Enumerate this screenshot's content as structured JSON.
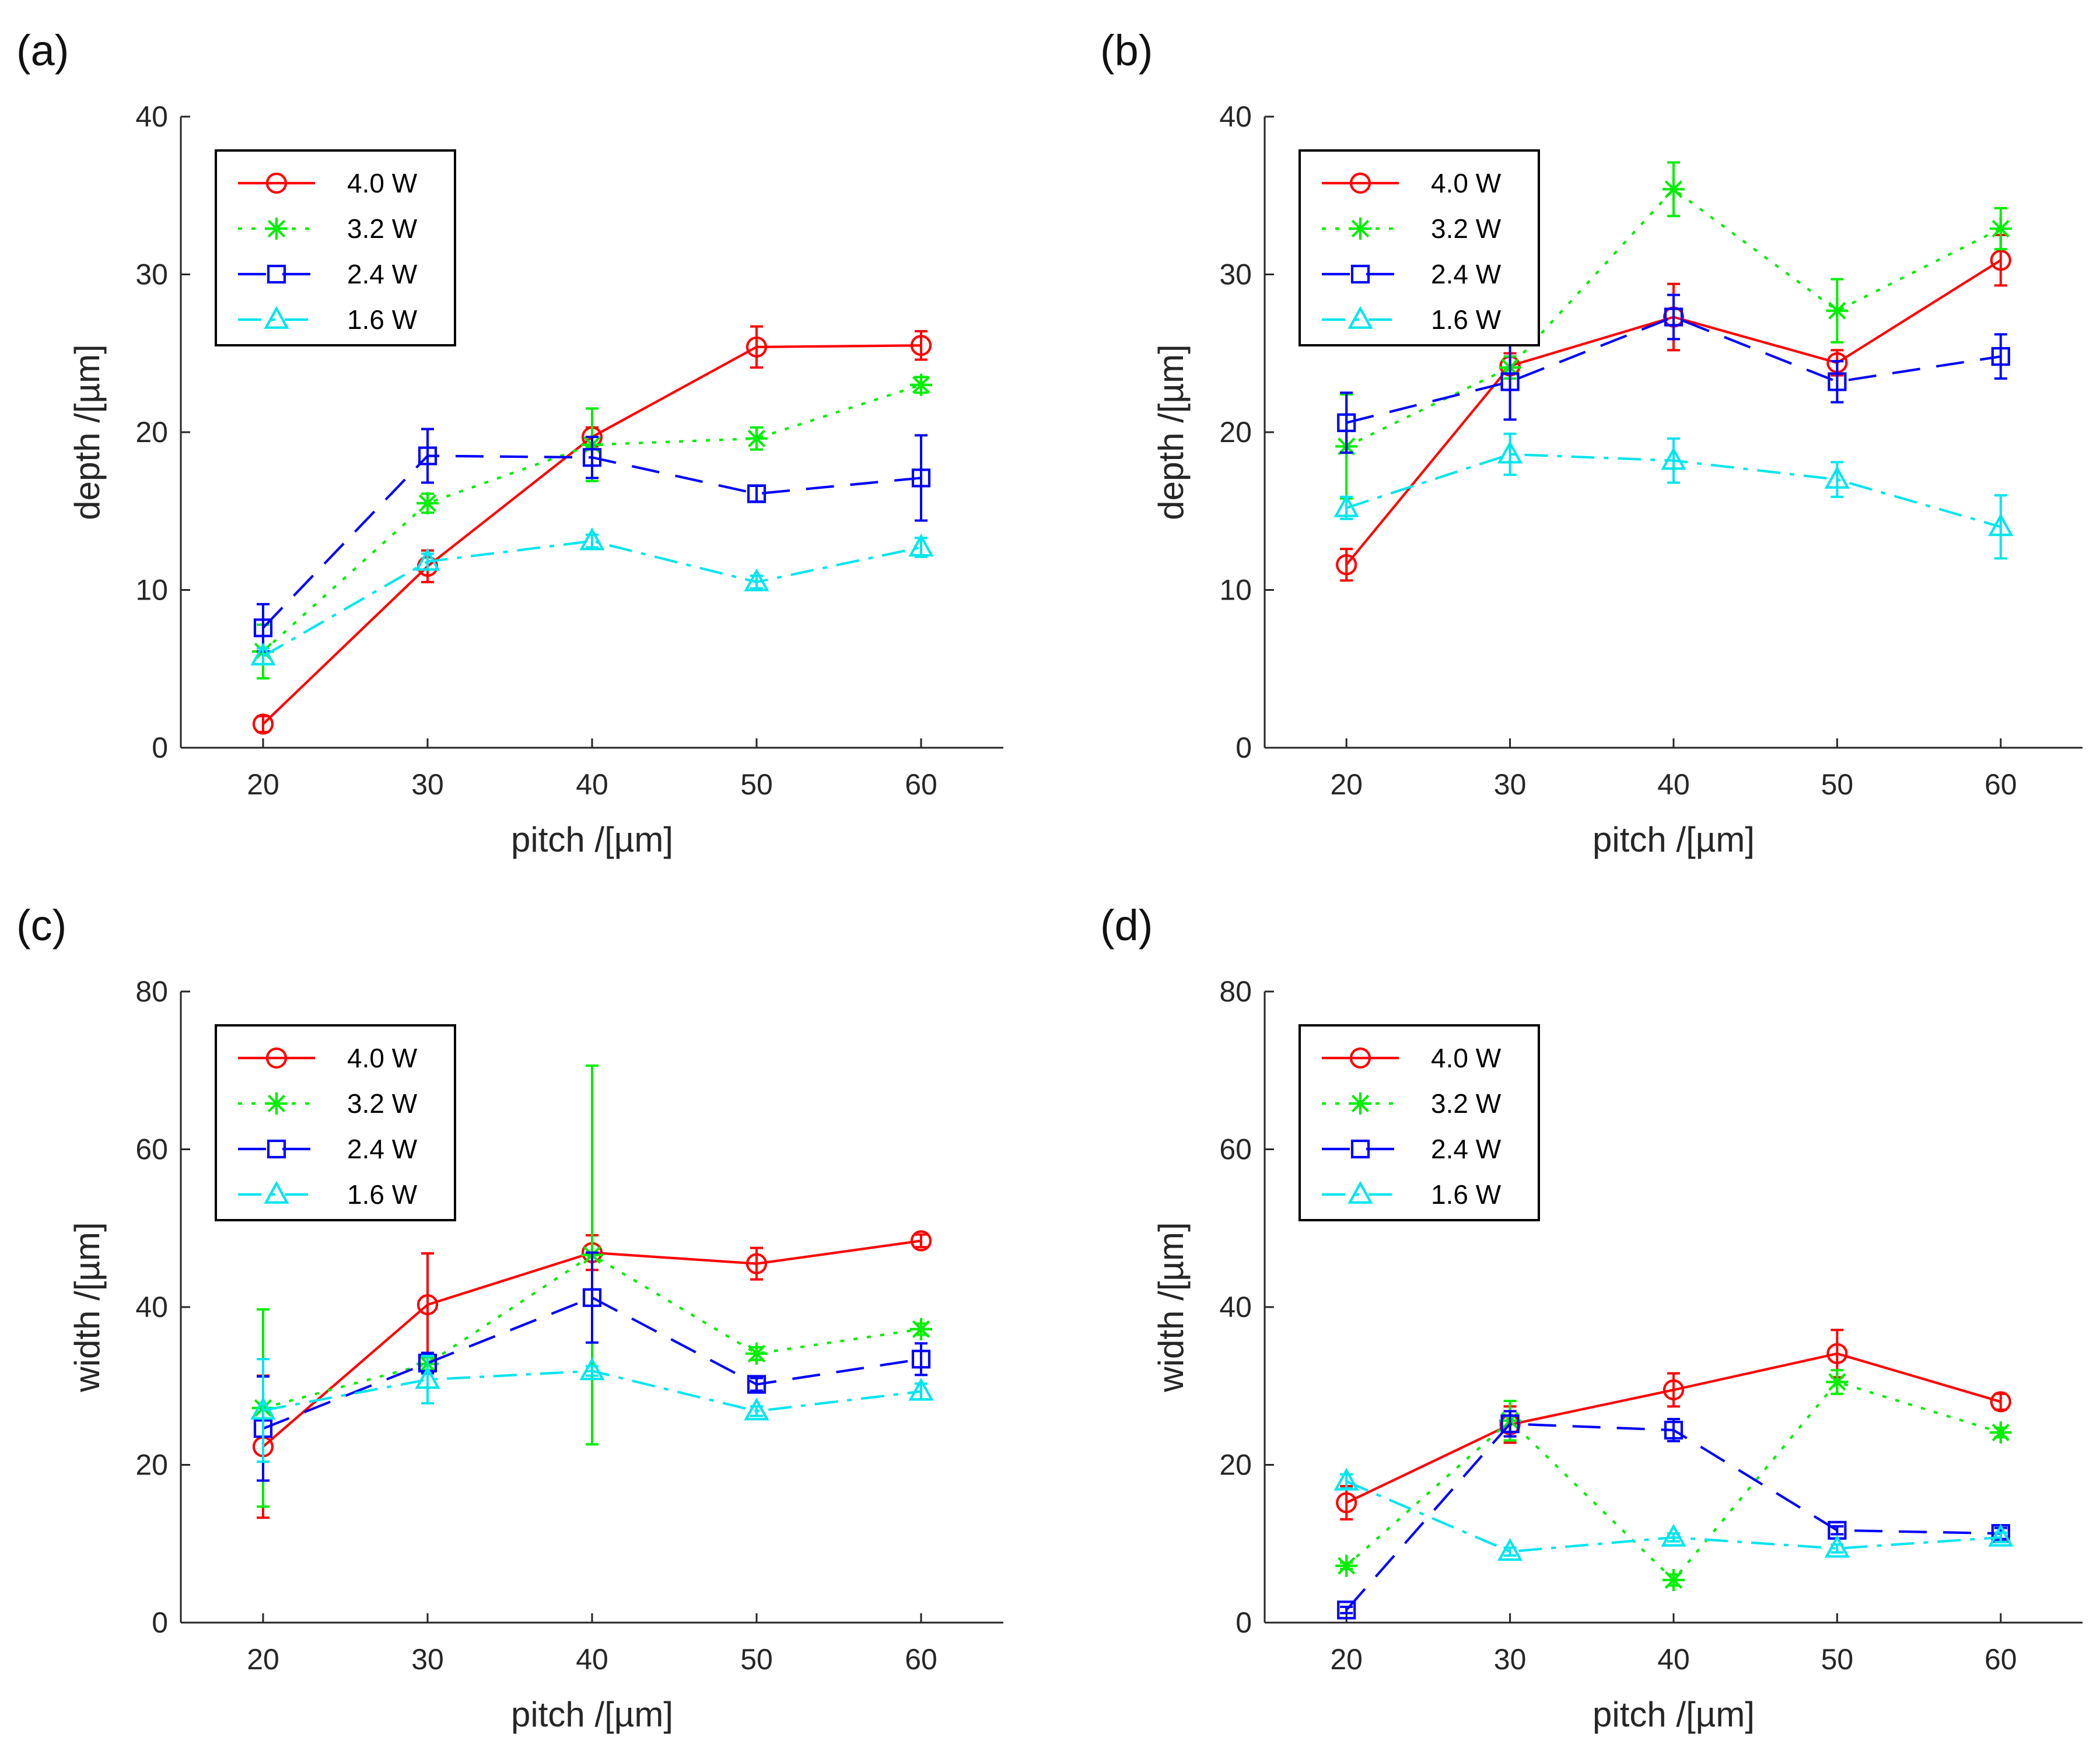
{
  "figure": {
    "panels": [
      "(a)",
      "(b)",
      "(c)",
      "(d)"
    ]
  },
  "colors": {
    "4.0 W": "#ff0000",
    "3.2 W": "#00ee00",
    "2.4 W": "#0000ff",
    "1.6 W": "#00e5ee"
  },
  "chart_data": [
    {
      "type": "line",
      "panel": "(a)",
      "xlabel": "pitch /[µm]",
      "ylabel": "depth /[µm]",
      "xlim": [
        15,
        65
      ],
      "ylim": [
        0,
        40
      ],
      "x_ticks": [
        20,
        30,
        40,
        50,
        60
      ],
      "y_ticks": [
        0,
        10,
        20,
        30,
        40
      ],
      "x": [
        20,
        30,
        40,
        50,
        60
      ],
      "legend_position": "top-left",
      "series": [
        {
          "name": "4.0 W",
          "values": [
            1.5,
            11.5,
            19.7,
            25.4,
            25.5
          ],
          "errors": [
            0.5,
            1.0,
            0.6,
            1.3,
            0.9
          ]
        },
        {
          "name": "3.2 W",
          "values": [
            6.1,
            15.5,
            19.2,
            19.6,
            23.0
          ],
          "errors": [
            1.7,
            0.6,
            2.3,
            0.7,
            0.5
          ]
        },
        {
          "name": "2.4 W",
          "values": [
            7.6,
            18.5,
            18.4,
            16.1,
            17.1
          ],
          "errors": [
            1.5,
            1.7,
            1.3,
            0.5,
            2.7
          ]
        },
        {
          "name": "1.6 W",
          "values": [
            5.8,
            11.8,
            13.1,
            10.5,
            12.7
          ],
          "errors": [
            0.5,
            0.5,
            0.4,
            0.4,
            0.6
          ]
        }
      ]
    },
    {
      "type": "line",
      "panel": "(b)",
      "xlabel": "pitch /[µm]",
      "ylabel": "depth /[µm]",
      "xlim": [
        15,
        65
      ],
      "ylim": [
        0,
        40
      ],
      "x_ticks": [
        20,
        30,
        40,
        50,
        60
      ],
      "y_ticks": [
        0,
        10,
        20,
        30,
        40
      ],
      "x": [
        20,
        30,
        40,
        50,
        60
      ],
      "legend_position": "top-left",
      "series": [
        {
          "name": "4.0 W",
          "values": [
            11.6,
            24.2,
            27.3,
            24.4,
            30.9
          ],
          "errors": [
            1.0,
            0.8,
            2.1,
            0.8,
            1.6
          ]
        },
        {
          "name": "3.2 W",
          "values": [
            19.1,
            24.1,
            35.4,
            27.7,
            32.9
          ],
          "errors": [
            3.3,
            0.7,
            1.7,
            2.0,
            1.3
          ]
        },
        {
          "name": "2.4 W",
          "values": [
            20.6,
            23.2,
            27.3,
            23.2,
            24.8
          ],
          "errors": [
            1.9,
            2.4,
            1.4,
            1.3,
            1.4
          ]
        },
        {
          "name": "1.6 W",
          "values": [
            15.2,
            18.6,
            18.2,
            17.0,
            14.0
          ],
          "errors": [
            0.7,
            1.3,
            1.4,
            1.1,
            2.0
          ]
        }
      ]
    },
    {
      "type": "line",
      "panel": "(c)",
      "xlabel": "pitch /[µm]",
      "ylabel": "width /[µm]",
      "xlim": [
        15,
        65
      ],
      "ylim": [
        0,
        80
      ],
      "x_ticks": [
        20,
        30,
        40,
        50,
        60
      ],
      "y_ticks": [
        0,
        20,
        40,
        60,
        80
      ],
      "x": [
        20,
        30,
        40,
        50,
        60
      ],
      "legend_position": "top-left",
      "series": [
        {
          "name": "4.0 W",
          "values": [
            22.3,
            40.3,
            46.9,
            45.5,
            48.4
          ],
          "errors": [
            9.0,
            6.5,
            2.2,
            2.0,
            0.8
          ]
        },
        {
          "name": "3.2 W",
          "values": [
            27.2,
            32.8,
            46.6,
            34.1,
            37.2
          ],
          "errors": [
            12.5,
            0.8,
            24.0,
            0.8,
            0.7
          ]
        },
        {
          "name": "2.4 W",
          "values": [
            24.6,
            32.9,
            41.2,
            30.2,
            33.4
          ],
          "errors": [
            6.6,
            1.3,
            5.7,
            0.8,
            2.0
          ]
        },
        {
          "name": "1.6 W",
          "values": [
            26.9,
            30.8,
            31.9,
            26.8,
            29.3
          ],
          "errors": [
            6.5,
            3.0,
            0.6,
            0.6,
            1.0
          ]
        }
      ]
    },
    {
      "type": "line",
      "panel": "(d)",
      "xlabel": "pitch /[µm]",
      "ylabel": "width /[µm]",
      "xlim": [
        15,
        65
      ],
      "ylim": [
        0,
        80
      ],
      "x_ticks": [
        20,
        30,
        40,
        50,
        60
      ],
      "y_ticks": [
        0,
        20,
        40,
        60,
        80
      ],
      "x": [
        20,
        30,
        40,
        50,
        60
      ],
      "legend_position": "top-left",
      "series": [
        {
          "name": "4.0 W",
          "values": [
            15.2,
            25.1,
            29.5,
            34.1,
            28.0
          ],
          "errors": [
            2.1,
            2.3,
            2.1,
            3.0,
            1.0
          ]
        },
        {
          "name": "3.2 W",
          "values": [
            7.2,
            25.6,
            5.4,
            30.5,
            24.1
          ],
          "errors": [
            0.4,
            2.5,
            0.7,
            1.5,
            0.6
          ]
        },
        {
          "name": "2.4 W",
          "values": [
            1.6,
            25.2,
            24.4,
            11.7,
            11.3
          ],
          "errors": [
            0.4,
            1.6,
            1.4,
            0.5,
            0.7
          ]
        },
        {
          "name": "1.6 W",
          "values": [
            17.9,
            9.0,
            10.8,
            9.4,
            10.8
          ],
          "errors": [
            0.9,
            0.5,
            0.5,
            0.5,
            0.6
          ]
        }
      ]
    }
  ]
}
